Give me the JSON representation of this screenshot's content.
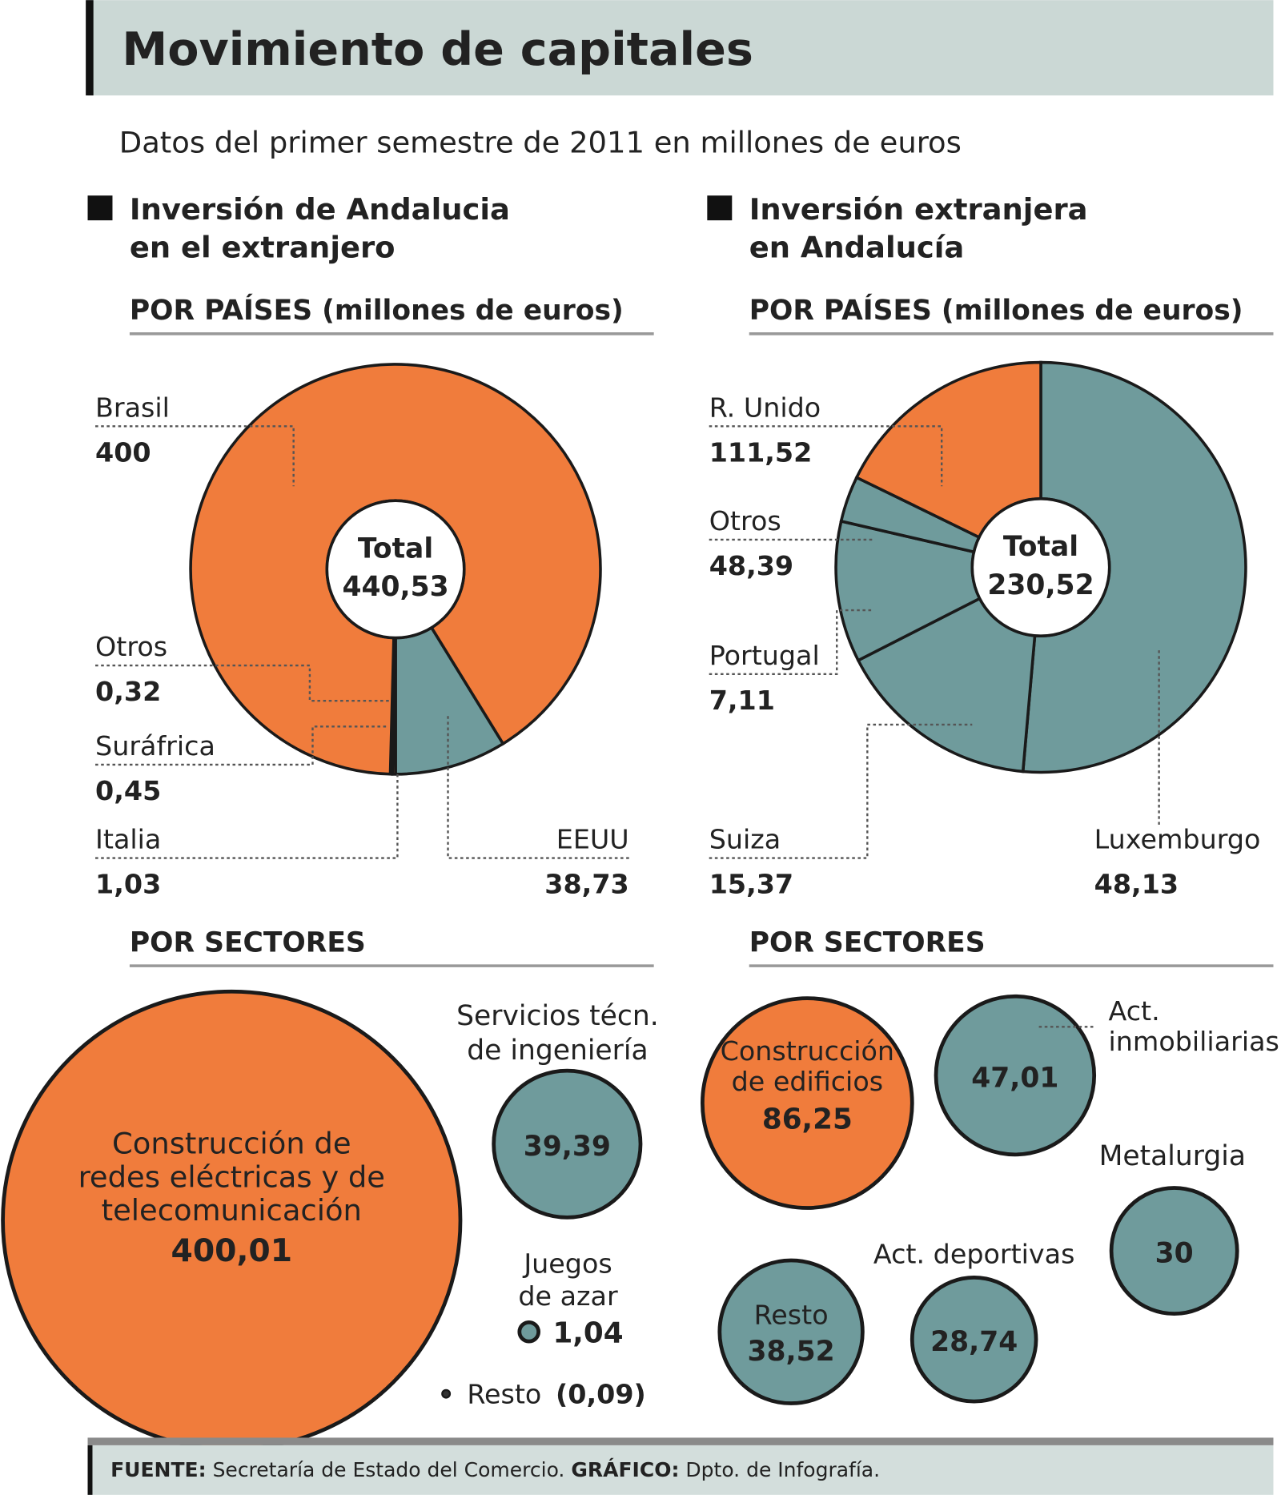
{
  "title": "Movimiento de capitales",
  "subtitle": "Datos del primer semestre de 2011 en millones de euros",
  "colors": {
    "orange": "#f07c3c",
    "teal": "#6f9b9c",
    "header_bg": "#cbd8d5",
    "footer_bg": "#d3dedc"
  },
  "left": {
    "heading_line1": "Inversión de Andalucia",
    "heading_line2": "en el extranjero",
    "countries_title": "POR PAÍSES (millones de euros)",
    "sectors_title": "POR SECTORES"
  },
  "right": {
    "heading_line1": "Inversión extranjera",
    "heading_line2": "en Andalucía",
    "countries_title": "POR PAÍSES (millones de euros)",
    "sectors_title": "POR SECTORES"
  },
  "chart_data": [
    {
      "type": "pie",
      "title": "POR PAÍSES (millones de euros)",
      "total_label": "Total",
      "total": "440,53",
      "slices": [
        {
          "name": "EEUU",
          "value": 38.73,
          "label": "38,73",
          "color": "teal"
        },
        {
          "name": "Italia",
          "value": 1.03,
          "label": "1,03",
          "color": "orange"
        },
        {
          "name": "Suráfrica",
          "value": 0.45,
          "label": "0,45",
          "color": "orange"
        },
        {
          "name": "Otros",
          "value": 0.32,
          "label": "0,32",
          "color": "orange"
        },
        {
          "name": "Brasil",
          "value": 400,
          "label": "400",
          "color": "orange"
        }
      ]
    },
    {
      "type": "pie",
      "title": "POR PAÍSES (millones de euros)",
      "total_label": "Total",
      "total": "230,52",
      "slices": [
        {
          "name": "Luxemburgo",
          "value": 48.13,
          "label": "48,13",
          "color": "teal"
        },
        {
          "name": "Suiza",
          "value": 15.37,
          "label": "15,37",
          "color": "teal"
        },
        {
          "name": "Portugal",
          "value": 7.11,
          "label": "7,11",
          "color": "teal"
        },
        {
          "name": "Otros",
          "value": 48.39,
          "label": "48,39",
          "color": "teal"
        },
        {
          "name": "R. Unido",
          "value": 111.52,
          "label": "111,52",
          "color": "orange"
        }
      ]
    },
    {
      "type": "bubble",
      "title": "POR SECTORES",
      "items": [
        {
          "name": "Construcción de redes eléctricas y de telecomunicación",
          "lines": [
            "Construcción de",
            "redes eléctricas y de",
            "telecomunicación"
          ],
          "value": 400.01,
          "label": "400,01",
          "color": "orange"
        },
        {
          "name": "Servicios técn. de ingeniería",
          "lines": [
            "Servicios técn.",
            "de ingeniería"
          ],
          "value": 39.39,
          "label": "39,39",
          "color": "teal"
        },
        {
          "name": "Juegos de azar",
          "lines": [
            "Juegos",
            "de azar"
          ],
          "value": 1.04,
          "label": "1,04",
          "color": "teal"
        },
        {
          "name": "Resto",
          "lines": [
            "Resto"
          ],
          "value": 0.09,
          "label": "(0,09)",
          "color": "dark"
        }
      ]
    },
    {
      "type": "bubble",
      "title": "POR SECTORES",
      "items": [
        {
          "name": "Construcción de edificios",
          "lines": [
            "Construcción",
            "de edificios"
          ],
          "value": 86.25,
          "label": "86,25",
          "color": "orange"
        },
        {
          "name": "Act. inmobiliarias",
          "lines": [
            "Act.",
            "inmobiliarias"
          ],
          "value": 47.01,
          "label": "47,01",
          "color": "teal"
        },
        {
          "name": "Metalurgia",
          "lines": [
            "Metalurgia"
          ],
          "value": 30,
          "label": "30",
          "color": "teal"
        },
        {
          "name": "Resto",
          "lines": [
            "Resto"
          ],
          "value": 38.52,
          "label": "38,52",
          "color": "teal"
        },
        {
          "name": "Act. deportivas",
          "lines": [
            "Act. deportivas"
          ],
          "value": 28.74,
          "label": "28,74",
          "color": "teal"
        }
      ]
    }
  ],
  "footer": {
    "source_label": "FUENTE:",
    "source": "Secretaría de Estado del Comercio.",
    "graphic_label": "GRÁFICO:",
    "graphic": "Dpto. de Infografía."
  }
}
